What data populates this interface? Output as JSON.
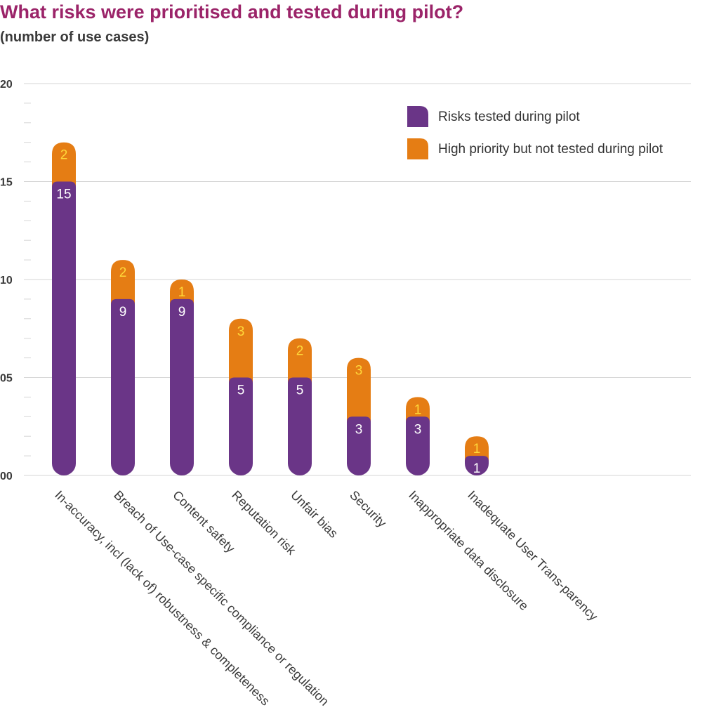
{
  "title": "What risks were prioritised and tested during pilot?",
  "subtitle": "(number of use cases)",
  "colors": {
    "title": "#9b2469",
    "tested": "#6a3587",
    "not_tested": "#e57d14",
    "top_label": "#ffd83a",
    "grid": "#d6d6d6"
  },
  "chart_data": {
    "type": "bar",
    "stacked": true,
    "categories": [
      "In-accuracy, incl (lack of) robustness & completeness",
      "Breach of Use-case specific compliance or regulation",
      "Content safety",
      "Reputation risk",
      "Unfair bias",
      "Security",
      "Inappropriate data disclosure",
      "Inadequate User Trans-parency"
    ],
    "series": [
      {
        "name": "Risks tested during pilot",
        "values": [
          15,
          9,
          9,
          5,
          5,
          3,
          3,
          1
        ],
        "color": "#6a3587"
      },
      {
        "name": "High priority but not tested during pilot",
        "values": [
          2,
          2,
          1,
          3,
          2,
          3,
          1,
          1
        ],
        "color": "#e57d14"
      }
    ],
    "yticks": [
      "00",
      "05",
      "10",
      "15",
      "20"
    ],
    "ylim": [
      0,
      20
    ],
    "grid": true,
    "legend_position": "top-right",
    "xlabel": "",
    "ylabel": ""
  }
}
